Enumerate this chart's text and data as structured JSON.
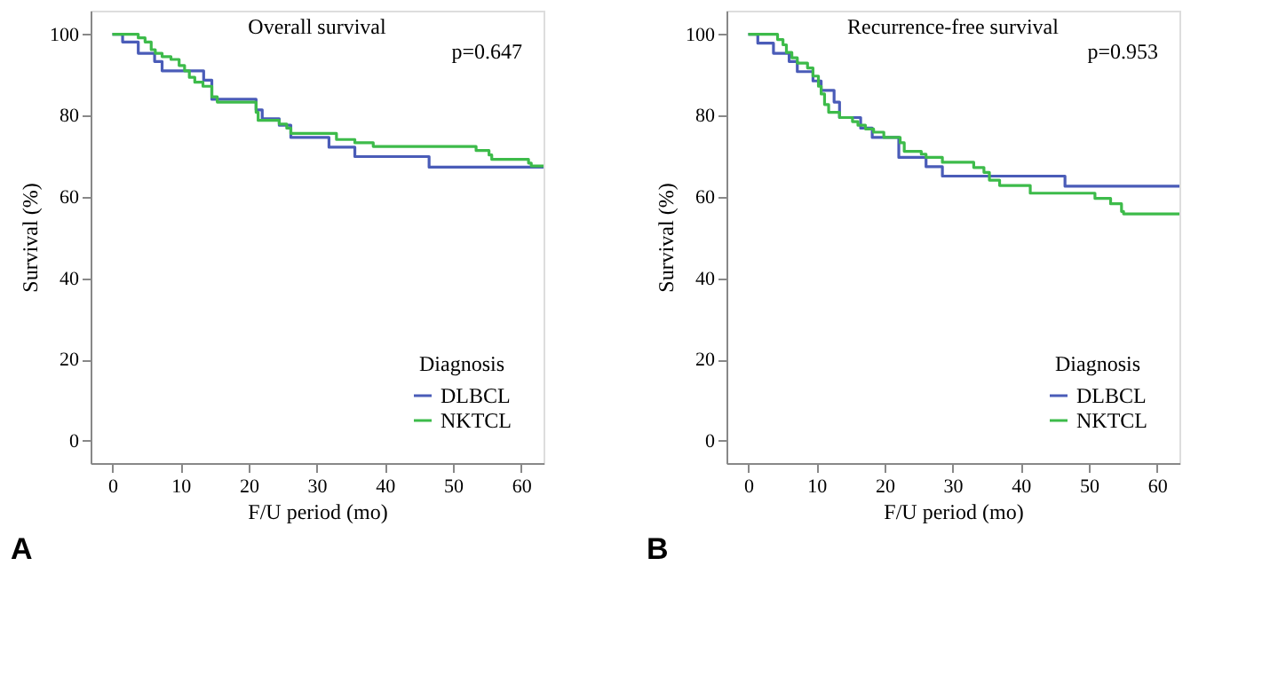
{
  "chart_data": [
    {
      "type": "step",
      "title": "Overall survival",
      "xlabel": "F/U period (mo)",
      "ylabel": "Survival (%)",
      "legend_title": "Diagnosis",
      "legend": "bottom right",
      "grid": false,
      "annotations": [
        "p=0.647",
        "A"
      ],
      "xlim": [
        -3.2,
        63.3
      ],
      "ylim": [
        -5.5,
        105.8
      ],
      "xticks": [
        0,
        10,
        20,
        30,
        40,
        50,
        60
      ],
      "yticks": [
        0,
        20,
        40,
        60,
        80,
        100
      ],
      "series": [
        {
          "name": "DLBCL",
          "color": "#4a5cb8",
          "x": [
            0,
            1.5,
            3.8,
            6.2,
            7.3,
            13.4,
            14.6,
            21.1,
            22.0,
            24.5,
            26.2,
            31.8,
            35.6,
            46.5,
            63.3
          ],
          "values": [
            100,
            98.1,
            95.3,
            93.3,
            91.0,
            88.7,
            84.0,
            81.4,
            79.2,
            77.6,
            74.6,
            72.2,
            69.9,
            67.3,
            67.3
          ]
        },
        {
          "name": "NKTCL",
          "color": "#3dbb4a",
          "x": [
            0,
            3.8,
            4.8,
            5.7,
            6.3,
            7.3,
            8.6,
            9.8,
            10.6,
            11.3,
            12.1,
            13.3,
            14.6,
            15.4,
            21.1,
            21.4,
            24.5,
            25.6,
            26.2,
            32.9,
            35.6,
            38.3,
            53.4,
            55.3,
            55.7,
            61.1,
            61.5,
            63.3
          ],
          "values": [
            100,
            99.1,
            98.1,
            96.2,
            95.3,
            94.5,
            93.8,
            92.3,
            91.0,
            89.4,
            88.2,
            87.2,
            84.6,
            83.3,
            80.8,
            78.8,
            77.9,
            76.9,
            75.6,
            74.1,
            73.3,
            72.4,
            71.4,
            70.3,
            69.2,
            68.3,
            67.6,
            67.6
          ]
        }
      ]
    },
    {
      "type": "step",
      "title": "Recurrence-free survival",
      "xlabel": "F/U period (mo)",
      "ylabel": "Survival (%)",
      "legend_title": "Diagnosis",
      "legend": "bottom right",
      "grid": false,
      "annotations": [
        "p=0.953",
        "B"
      ],
      "xlim": [
        -3.2,
        63.3
      ],
      "ylim": [
        -5.5,
        105.8
      ],
      "xticks": [
        0,
        10,
        20,
        30,
        40,
        50,
        60
      ],
      "yticks": [
        0,
        20,
        40,
        60,
        80,
        100
      ],
      "series": [
        {
          "name": "DLBCL",
          "color": "#4a5cb8",
          "x": [
            0,
            1.4,
            3.7,
            6.0,
            7.2,
            9.5,
            10.7,
            12.6,
            13.4,
            16.5,
            18.2,
            22.1,
            26.1,
            28.5,
            46.5,
            63.3
          ],
          "values": [
            100,
            97.8,
            95.3,
            93.3,
            90.8,
            88.5,
            86.2,
            83.3,
            79.5,
            76.9,
            74.6,
            69.7,
            67.4,
            65.1,
            62.6,
            62.6
          ]
        },
        {
          "name": "NKTCL",
          "color": "#3dbb4a",
          "x": [
            0,
            4.3,
            5.1,
            5.6,
            6.4,
            7.2,
            8.7,
            9.5,
            10.3,
            10.7,
            11.2,
            11.8,
            13.4,
            15.3,
            16.1,
            17.2,
            18.4,
            19.9,
            22.3,
            22.9,
            25.4,
            26.1,
            28.5,
            33.1,
            34.6,
            35.4,
            36.9,
            41.4,
            50.9,
            53.2,
            54.8,
            55.1,
            63.3
          ],
          "values": [
            100,
            98.7,
            97.4,
            95.5,
            94.2,
            92.9,
            91.7,
            89.7,
            87.2,
            85.3,
            82.7,
            80.8,
            79.5,
            78.5,
            77.6,
            76.7,
            75.9,
            74.6,
            73.3,
            71.2,
            70.5,
            69.7,
            68.5,
            67.2,
            66.0,
            64.1,
            62.8,
            60.9,
            59.6,
            58.3,
            56.4,
            55.8,
            55.8
          ]
        }
      ]
    }
  ]
}
